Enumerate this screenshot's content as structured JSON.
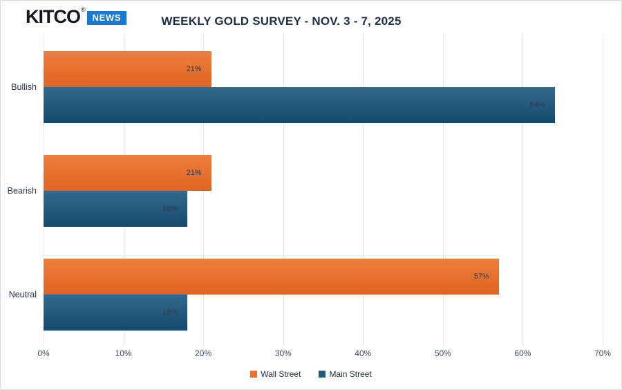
{
  "logo": {
    "brand": "KITCO",
    "registered": "®",
    "badge": "NEWS",
    "badge_color": "#1878D2",
    "brand_color": "#14181C"
  },
  "chart_data": {
    "type": "bar",
    "orientation": "horizontal",
    "title": "WEEKLY GOLD SURVEY - NOV. 3 - 7, 2025",
    "categories": [
      "Bullish",
      "Bearish",
      "Neutral"
    ],
    "series": [
      {
        "name": "Wall Street",
        "color": "#E8712F",
        "color_top": "#EE7E3C",
        "color_bottom": "#DF6420",
        "values": [
          21,
          21,
          57
        ],
        "labels": [
          "21%",
          "21%",
          "57%"
        ]
      },
      {
        "name": "Main Street",
        "color": "#1E5A7E",
        "color_top": "#34688C",
        "color_bottom": "#154A6E",
        "values": [
          64,
          18,
          18
        ],
        "labels": [
          "64%",
          "18%",
          "18%"
        ]
      }
    ],
    "xlabel": "",
    "ylabel": "",
    "xlim": [
      0,
      70
    ],
    "x_ticks": [
      0,
      10,
      20,
      30,
      40,
      50,
      60,
      70
    ],
    "x_tick_labels": [
      "0%",
      "10%",
      "20%",
      "30%",
      "40%",
      "50%",
      "60%",
      "70%"
    ],
    "grid": "vertical",
    "legend_position": "bottom"
  }
}
